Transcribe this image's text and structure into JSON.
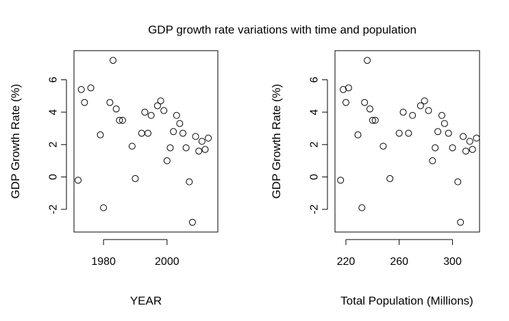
{
  "chart_data": {
    "title": "GDP growth rate variations with time and population",
    "type": "scatter",
    "panels": [
      {
        "xlabel": "YEAR",
        "ylabel": "GDP Growth Rate (%)",
        "xlim": [
          1970.7,
          2016
        ],
        "ylim": [
          -3.4,
          7.8
        ],
        "xticks": [
          1980,
          2000
        ],
        "yticks": [
          -2,
          0,
          2,
          4,
          6
        ],
        "grid": false,
        "points": [
          [
            1972,
            -0.2
          ],
          [
            1973,
            5.4
          ],
          [
            1974,
            4.6
          ],
          [
            1976,
            5.5
          ],
          [
            1979,
            2.6
          ],
          [
            1980,
            -1.9
          ],
          [
            1982,
            4.6
          ],
          [
            1983,
            7.2
          ],
          [
            1984,
            4.2
          ],
          [
            1985,
            3.5
          ],
          [
            1986,
            3.5
          ],
          [
            1989,
            1.9
          ],
          [
            1990,
            -0.1
          ],
          [
            1992,
            2.7
          ],
          [
            1993,
            4.0
          ],
          [
            1994,
            2.7
          ],
          [
            1995,
            3.8
          ],
          [
            1997,
            4.4
          ],
          [
            1998,
            4.7
          ],
          [
            1999,
            4.1
          ],
          [
            2000,
            1.0
          ],
          [
            2001,
            1.8
          ],
          [
            2002,
            2.8
          ],
          [
            2003,
            3.8
          ],
          [
            2004,
            3.3
          ],
          [
            2005,
            2.7
          ],
          [
            2006,
            1.8
          ],
          [
            2007,
            -0.3
          ],
          [
            2008,
            -2.8
          ],
          [
            2009,
            2.5
          ],
          [
            2010,
            1.6
          ],
          [
            2011,
            2.2
          ],
          [
            2012,
            1.7
          ],
          [
            2013,
            2.4
          ]
        ]
      },
      {
        "xlabel": "Total Population (Millions)",
        "ylabel": "GDP Growth Rate (%)",
        "xlim": [
          211.8,
          320.3
        ],
        "ylim": [
          -3.4,
          7.8
        ],
        "xticks": [
          220,
          260,
          300
        ],
        "yticks": [
          -2,
          0,
          2,
          4,
          6
        ],
        "grid": false,
        "points": [
          [
            216,
            -0.2
          ],
          [
            218,
            5.4
          ],
          [
            220,
            4.6
          ],
          [
            222,
            5.5
          ],
          [
            229,
            2.6
          ],
          [
            232,
            -1.9
          ],
          [
            234,
            4.6
          ],
          [
            236,
            7.2
          ],
          [
            238,
            4.2
          ],
          [
            240,
            3.5
          ],
          [
            242,
            3.5
          ],
          [
            248,
            1.9
          ],
          [
            253,
            -0.1
          ],
          [
            260,
            2.7
          ],
          [
            263,
            4.0
          ],
          [
            267,
            2.7
          ],
          [
            270,
            3.8
          ],
          [
            276,
            4.4
          ],
          [
            279,
            4.7
          ],
          [
            282,
            4.1
          ],
          [
            285,
            1.0
          ],
          [
            287,
            1.8
          ],
          [
            289,
            2.8
          ],
          [
            292,
            3.8
          ],
          [
            294,
            3.3
          ],
          [
            297,
            2.7
          ],
          [
            300,
            1.8
          ],
          [
            304,
            -0.3
          ],
          [
            306,
            -2.8
          ],
          [
            308,
            2.5
          ],
          [
            310,
            1.6
          ],
          [
            313,
            2.2
          ],
          [
            315,
            1.7
          ],
          [
            318,
            2.4
          ]
        ]
      }
    ]
  }
}
